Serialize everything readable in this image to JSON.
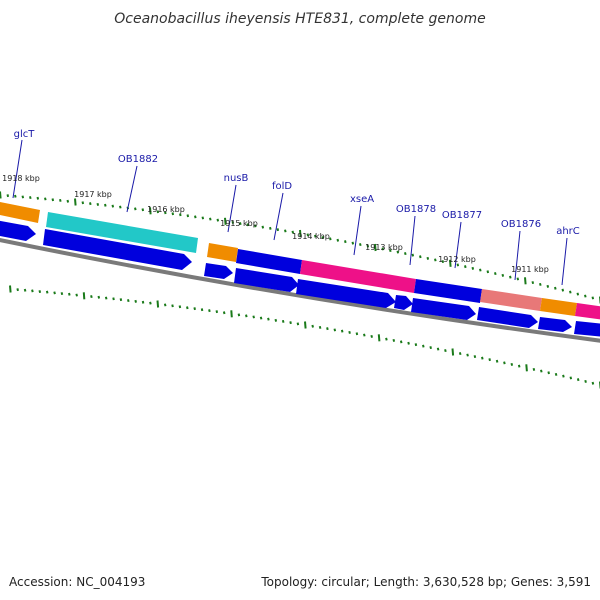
{
  "title": "Oceanobacillus iheyensis HTE831, complete genome",
  "footer": {
    "accession": "Accession: NC_004193",
    "summary": "Topology: circular; Length: 3,630,528 bp; Genes: 3,591"
  },
  "colors": {
    "cds_blue": "#0000dd",
    "orange": "#f08c00",
    "cyan": "#22c8c8",
    "magenta": "#ee1188",
    "salmon": "#e87878",
    "tick_green": "#1a7a1a",
    "backbone_grey": "#7a7a7a",
    "label_blue": "#1a1aa8"
  },
  "gene_labels": [
    "glcT",
    "OB1882",
    "nusB",
    "folD",
    "xseA",
    "OB1878",
    "OB1877",
    "OB1876",
    "ahrC"
  ],
  "kbp_labels": [
    "1918 kbp",
    "1917 kbp",
    "1916 kbp",
    "1915 kbp",
    "1914 kbp",
    "1913 kbp",
    "1912 kbp",
    "1911 kbp"
  ]
}
